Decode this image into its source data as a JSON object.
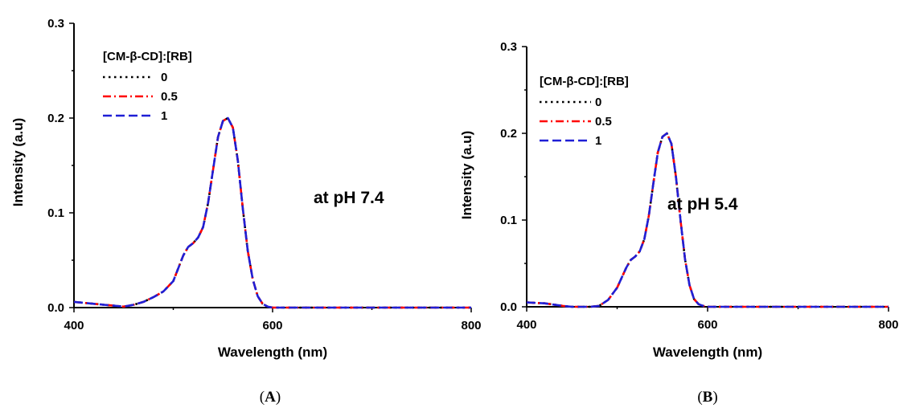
{
  "chart_data": [
    {
      "panel_label": "A",
      "type": "line",
      "xlabel": "Wavelength (nm)",
      "ylabel": "Intensity (a.u)",
      "xlim": [
        400,
        800
      ],
      "ylim": [
        0,
        0.3
      ],
      "xticks": [
        "400",
        "600",
        "800"
      ],
      "yticks": [
        "0.0",
        "0.1",
        "0.2",
        "0.3"
      ],
      "annotation": "at pH 7.4",
      "legend_title": "[CM-β-CD]:[RB]",
      "legend_position": "top-left",
      "grid": false,
      "series": [
        {
          "name": "0",
          "color": "#000000",
          "style": "dotted",
          "x": [
            400,
            420,
            440,
            450,
            460,
            470,
            480,
            490,
            500,
            510,
            515,
            520,
            525,
            530,
            535,
            540,
            545,
            550,
            555,
            560,
            565,
            570,
            575,
            580,
            585,
            590,
            595,
            600,
            650,
            700,
            750,
            800
          ],
          "y": [
            0.006,
            0.004,
            0.002,
            0.001,
            0.003,
            0.006,
            0.011,
            0.017,
            0.028,
            0.055,
            0.064,
            0.068,
            0.074,
            0.085,
            0.11,
            0.145,
            0.18,
            0.197,
            0.2,
            0.19,
            0.155,
            0.105,
            0.06,
            0.03,
            0.012,
            0.004,
            0.001,
            0.0,
            0.0,
            0.0,
            0.0,
            0.0
          ]
        },
        {
          "name": "0.5",
          "color": "#ff0000",
          "style": "dashdot",
          "x": [
            400,
            420,
            440,
            450,
            460,
            470,
            480,
            490,
            500,
            510,
            515,
            520,
            525,
            530,
            535,
            540,
            545,
            550,
            555,
            560,
            565,
            570,
            575,
            580,
            585,
            590,
            595,
            600,
            650,
            700,
            750,
            800
          ],
          "y": [
            0.006,
            0.004,
            0.002,
            0.001,
            0.003,
            0.006,
            0.011,
            0.017,
            0.028,
            0.055,
            0.064,
            0.068,
            0.074,
            0.085,
            0.11,
            0.145,
            0.18,
            0.197,
            0.2,
            0.19,
            0.155,
            0.105,
            0.06,
            0.03,
            0.012,
            0.004,
            0.001,
            0.0,
            0.0,
            0.0,
            0.0,
            0.0
          ]
        },
        {
          "name": "1",
          "color": "#1f1fd6",
          "style": "dashed",
          "x": [
            400,
            420,
            440,
            450,
            460,
            470,
            480,
            490,
            500,
            510,
            515,
            520,
            525,
            530,
            535,
            540,
            545,
            550,
            555,
            560,
            565,
            570,
            575,
            580,
            585,
            590,
            595,
            600,
            650,
            700,
            750,
            800
          ],
          "y": [
            0.006,
            0.004,
            0.002,
            0.001,
            0.003,
            0.006,
            0.011,
            0.017,
            0.028,
            0.055,
            0.064,
            0.068,
            0.074,
            0.085,
            0.11,
            0.145,
            0.18,
            0.197,
            0.2,
            0.19,
            0.155,
            0.105,
            0.06,
            0.03,
            0.012,
            0.004,
            0.001,
            0.0,
            0.0,
            0.0,
            0.0,
            0.0
          ]
        }
      ]
    },
    {
      "panel_label": "B",
      "type": "line",
      "xlabel": "Wavelength (nm)",
      "ylabel": "Intensity (a.u)",
      "xlim": [
        400,
        800
      ],
      "ylim": [
        0,
        0.3
      ],
      "xticks": [
        "400",
        "600",
        "800"
      ],
      "yticks": [
        "0.0",
        "0.1",
        "0.2",
        "0.3"
      ],
      "annotation": "at pH 5.4",
      "legend_title": "[CM-β-CD]:[RB]",
      "legend_position": "top-left",
      "grid": false,
      "series": [
        {
          "name": "0",
          "color": "#000000",
          "style": "dotted",
          "x": [
            400,
            420,
            440,
            450,
            460,
            470,
            480,
            490,
            500,
            510,
            515,
            520,
            525,
            530,
            535,
            540,
            545,
            550,
            555,
            560,
            565,
            570,
            575,
            580,
            585,
            590,
            595,
            600,
            650,
            700,
            750,
            800
          ],
          "y": [
            0.005,
            0.004,
            0.001,
            0.0,
            0.0,
            0.0,
            0.001,
            0.008,
            0.022,
            0.045,
            0.054,
            0.058,
            0.064,
            0.078,
            0.105,
            0.142,
            0.178,
            0.196,
            0.2,
            0.188,
            0.15,
            0.1,
            0.055,
            0.025,
            0.009,
            0.003,
            0.001,
            0.0,
            0.0,
            0.0,
            0.0,
            0.0
          ]
        },
        {
          "name": "0.5",
          "color": "#ff0000",
          "style": "dashdot",
          "x": [
            400,
            420,
            440,
            450,
            460,
            470,
            480,
            490,
            500,
            510,
            515,
            520,
            525,
            530,
            535,
            540,
            545,
            550,
            555,
            560,
            565,
            570,
            575,
            580,
            585,
            590,
            595,
            600,
            650,
            700,
            750,
            800
          ],
          "y": [
            0.005,
            0.004,
            0.001,
            0.0,
            0.0,
            0.0,
            0.001,
            0.008,
            0.022,
            0.045,
            0.054,
            0.058,
            0.064,
            0.078,
            0.105,
            0.142,
            0.178,
            0.196,
            0.2,
            0.188,
            0.15,
            0.1,
            0.055,
            0.025,
            0.009,
            0.003,
            0.001,
            0.0,
            0.0,
            0.0,
            0.0,
            0.0
          ]
        },
        {
          "name": "1",
          "color": "#1f1fd6",
          "style": "dashed",
          "x": [
            400,
            420,
            440,
            450,
            460,
            470,
            480,
            490,
            500,
            510,
            515,
            520,
            525,
            530,
            535,
            540,
            545,
            550,
            555,
            560,
            565,
            570,
            575,
            580,
            585,
            590,
            595,
            600,
            650,
            700,
            750,
            800
          ],
          "y": [
            0.005,
            0.004,
            0.001,
            0.0,
            0.0,
            0.0,
            0.001,
            0.008,
            0.022,
            0.045,
            0.054,
            0.058,
            0.064,
            0.078,
            0.105,
            0.142,
            0.178,
            0.196,
            0.2,
            0.188,
            0.15,
            0.1,
            0.055,
            0.025,
            0.009,
            0.003,
            0.001,
            0.0,
            0.0,
            0.0,
            0.0,
            0.0
          ]
        }
      ]
    }
  ]
}
